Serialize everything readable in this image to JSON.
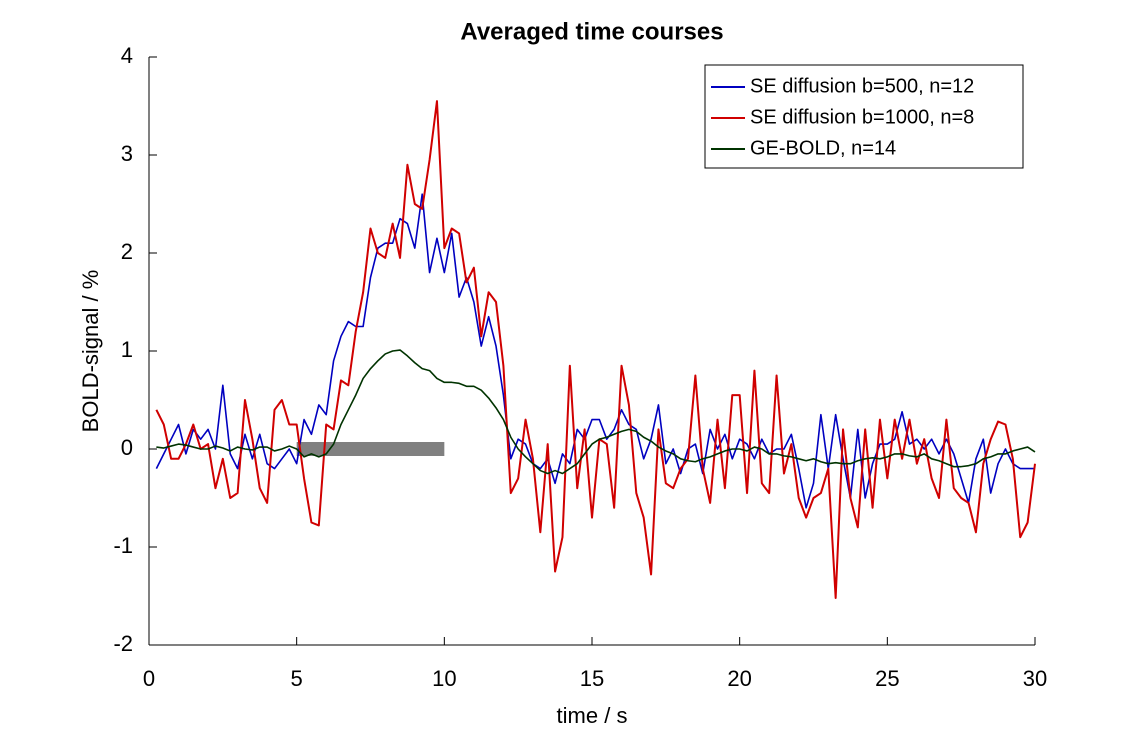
{
  "chart_data": {
    "type": "line",
    "title": "Averaged time courses",
    "xlabel": "time / s",
    "ylabel": "BOLD-signal / %",
    "x": [
      0.25,
      0.5,
      0.75,
      1,
      1.25,
      1.5,
      1.75,
      2,
      2.25,
      2.5,
      2.75,
      3,
      3.25,
      3.5,
      3.75,
      4,
      4.25,
      4.5,
      4.75,
      5,
      5.25,
      5.5,
      5.75,
      6,
      6.25,
      6.5,
      6.75,
      7,
      7.25,
      7.5,
      7.75,
      8,
      8.25,
      8.5,
      8.75,
      9,
      9.25,
      9.5,
      9.75,
      10,
      10.25,
      10.5,
      10.75,
      11,
      11.25,
      11.5,
      11.75,
      12,
      12.25,
      12.5,
      12.75,
      13,
      13.25,
      13.5,
      13.75,
      14,
      14.25,
      14.5,
      14.75,
      15,
      15.25,
      15.5,
      15.75,
      16,
      16.25,
      16.5,
      16.75,
      17,
      17.25,
      17.5,
      17.75,
      18,
      18.25,
      18.5,
      18.75,
      19,
      19.25,
      19.5,
      19.75,
      20,
      20.25,
      20.5,
      20.75,
      21,
      21.25,
      21.5,
      21.75,
      22,
      22.25,
      22.5,
      22.75,
      23,
      23.25,
      23.5,
      23.75,
      24,
      24.25,
      24.5,
      24.75,
      25,
      25.25,
      25.5,
      25.75,
      26,
      26.25,
      26.5,
      26.75,
      27,
      27.25,
      27.5,
      27.75,
      28,
      28.25,
      28.5,
      28.75,
      29,
      29.25,
      29.5,
      29.75,
      30
    ],
    "series": [
      {
        "name": "SE diffusion b=500, n=12",
        "color": "#0000c0",
        "values": [
          -0.2,
          -0.05,
          0.1,
          0.25,
          -0.05,
          0.2,
          0.1,
          0.2,
          0,
          0.65,
          -0.05,
          -0.2,
          0.15,
          -0.1,
          0.15,
          -0.15,
          -0.2,
          -0.1,
          0,
          -0.15,
          0.3,
          0.15,
          0.45,
          0.35,
          0.9,
          1.15,
          1.3,
          1.25,
          1.25,
          1.75,
          2.05,
          2.1,
          2.1,
          2.35,
          2.3,
          2.05,
          2.6,
          1.8,
          2.15,
          1.8,
          2.2,
          1.55,
          1.75,
          1.5,
          1.05,
          1.35,
          1.05,
          0.55,
          -0.1,
          0.1,
          0.05,
          -0.15,
          -0.2,
          -0.1,
          -0.35,
          -0.05,
          -0.15,
          0.2,
          0.1,
          0.3,
          0.3,
          0.1,
          0.2,
          0.4,
          0.25,
          0.2,
          -0.1,
          0.1,
          0.45,
          -0.15,
          0,
          -0.25,
          0,
          0.05,
          -0.25,
          0.2,
          0,
          0.15,
          -0.1,
          0.1,
          0.05,
          -0.1,
          0.1,
          -0.05,
          0,
          0,
          0.15,
          -0.2,
          -0.6,
          -0.35,
          0.35,
          -0.2,
          0.35,
          -0.1,
          -0.5,
          0.2,
          -0.5,
          -0.15,
          0.05,
          0.05,
          0.1,
          0.38,
          0.05,
          0.1,
          0,
          0.1,
          -0.05,
          0.1,
          -0.05,
          -0.3,
          -0.55,
          -0.1,
          0.1,
          -0.45,
          -0.15,
          0,
          -0.15,
          -0.2,
          -0.2,
          -0.2
        ]
      },
      {
        "name": "SE diffusion b=1000, n=8",
        "color": "#d00000",
        "values": [
          0.4,
          0.25,
          -0.1,
          -0.1,
          0.05,
          0.25,
          0,
          0.05,
          -0.4,
          -0.1,
          -0.5,
          -0.45,
          0.5,
          0.1,
          -0.4,
          -0.55,
          0.4,
          0.5,
          0.25,
          0.25,
          -0.3,
          -0.75,
          -0.78,
          0.25,
          0.2,
          0.7,
          0.65,
          1.2,
          1.6,
          2.25,
          2,
          1.95,
          2.3,
          1.95,
          2.9,
          2.5,
          2.45,
          2.95,
          3.55,
          2.05,
          2.25,
          2.2,
          1.7,
          1.85,
          1.15,
          1.6,
          1.5,
          0.85,
          -0.45,
          -0.3,
          0.3,
          -0.1,
          -0.85,
          0.05,
          -1.25,
          -0.9,
          0.85,
          -0.4,
          0.2,
          -0.7,
          0.1,
          0.05,
          -0.6,
          0.85,
          0.45,
          -0.45,
          -0.7,
          -1.28,
          0.2,
          -0.35,
          -0.4,
          -0.2,
          -0.1,
          0.75,
          -0.2,
          -0.55,
          0.3,
          -0.4,
          0.55,
          0.55,
          -0.45,
          0.8,
          -0.35,
          -0.45,
          0.75,
          -0.25,
          0.05,
          -0.5,
          -0.7,
          -0.5,
          -0.45,
          -0.2,
          -1.52,
          0.2,
          -0.5,
          -0.8,
          0.2,
          -0.6,
          0.3,
          -0.3,
          0.3,
          -0.1,
          0.3,
          -0.15,
          0.1,
          -0.3,
          -0.5,
          0.3,
          -0.4,
          -0.5,
          -0.55,
          -0.85,
          -0.15,
          0.1,
          0.28,
          0.25,
          -0.1,
          -0.9,
          -0.75,
          -0.15
        ]
      },
      {
        "name": "GE-BOLD, n=14",
        "color": "#003300",
        "values": [
          0.02,
          0.01,
          0.03,
          0.05,
          0.04,
          0.02,
          0,
          0,
          0.03,
          0.01,
          -0.02,
          0.02,
          0,
          -0.01,
          0.02,
          0.02,
          -0.02,
          0,
          0.03,
          0,
          -0.08,
          -0.05,
          -0.08,
          -0.05,
          0.05,
          0.25,
          0.4,
          0.55,
          0.72,
          0.82,
          0.9,
          0.97,
          1,
          1.01,
          0.95,
          0.88,
          0.82,
          0.8,
          0.72,
          0.68,
          0.68,
          0.67,
          0.64,
          0.64,
          0.6,
          0.52,
          0.42,
          0.3,
          0.12,
          0,
          -0.08,
          -0.15,
          -0.22,
          -0.25,
          -0.22,
          -0.25,
          -0.2,
          -0.15,
          -0.05,
          0.05,
          0.1,
          0.12,
          0.15,
          0.18,
          0.2,
          0.18,
          0.12,
          0.08,
          0.02,
          -0.02,
          -0.05,
          -0.1,
          -0.12,
          -0.13,
          -0.1,
          -0.08,
          -0.05,
          -0.02,
          0,
          0,
          -0.02,
          0.02,
          0,
          -0.05,
          -0.05,
          -0.07,
          -0.08,
          -0.1,
          -0.12,
          -0.1,
          -0.13,
          -0.15,
          -0.14,
          -0.15,
          -0.15,
          -0.12,
          -0.1,
          -0.09,
          -0.1,
          -0.08,
          -0.05,
          -0.05,
          -0.07,
          -0.08,
          -0.05,
          -0.1,
          -0.12,
          -0.15,
          -0.18,
          -0.18,
          -0.17,
          -0.15,
          -0.1,
          -0.08,
          -0.05,
          -0.05,
          -0.02,
          0,
          0.02,
          -0.03
        ]
      }
    ],
    "stimulus": {
      "x": [
        5,
        10
      ],
      "y": 0,
      "color": "#808080"
    },
    "xlim": [
      0,
      30
    ],
    "xticks": [
      0,
      5,
      10,
      15,
      20,
      25,
      30
    ],
    "ylim": [
      -2,
      4
    ],
    "yticks": [
      -2,
      -1,
      0,
      1,
      2,
      3,
      4
    ],
    "grid": false,
    "legend": "upper right"
  }
}
